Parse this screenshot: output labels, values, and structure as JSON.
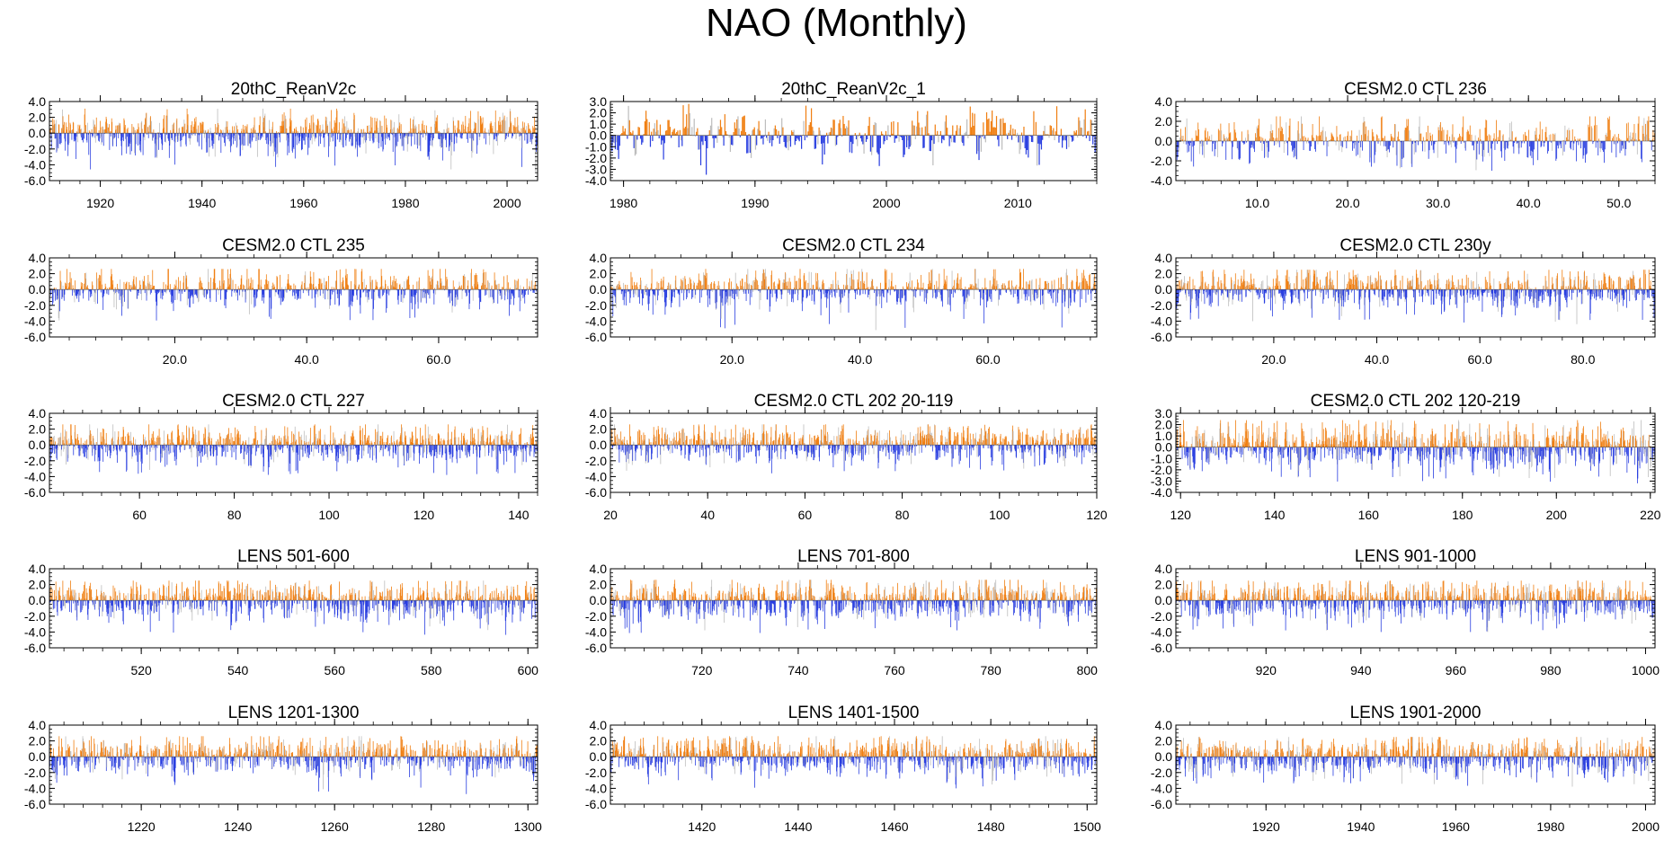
{
  "title": "NAO (Monthly)",
  "colors": {
    "positive": "#f07f12",
    "negative": "#2a3fe0",
    "faint": "#bdbdbd",
    "axis": "#000000"
  },
  "chart_data": [
    {
      "type": "bar",
      "title": "20thC_ReanV2c",
      "xlim": [
        1910,
        2006
      ],
      "ylim": [
        -6.0,
        4.0
      ],
      "yticks": [
        "4.0",
        "2.0",
        "0.0",
        "-2.0",
        "-4.0",
        "-6.0"
      ],
      "ytick_values": [
        4,
        2,
        0,
        -2,
        -4,
        -6
      ],
      "xticks": [
        "1920",
        "1940",
        "1960",
        "1980",
        "2000"
      ],
      "xtick_values": [
        1920,
        1940,
        1960,
        1980,
        2000
      ],
      "monthly_series": {
        "months": 1152,
        "amplitude": 1.2,
        "max": 3.1,
        "min": -5.0,
        "seed": 11
      }
    },
    {
      "type": "bar",
      "title": "20thC_ReanV2c_1",
      "xlim": [
        1979,
        2016
      ],
      "ylim": [
        -4.0,
        3.0
      ],
      "yticks": [
        "3.0",
        "2.0",
        "1.0",
        "0.0",
        "-1.0",
        "-2.0",
        "-3.0",
        "-4.0"
      ],
      "ytick_values": [
        3,
        2,
        1,
        0,
        -1,
        -2,
        -3,
        -4
      ],
      "xticks": [
        "1980",
        "1990",
        "2000",
        "2010"
      ],
      "xtick_values": [
        1980,
        1990,
        2000,
        2010
      ],
      "monthly_series": {
        "months": 444,
        "amplitude": 0.9,
        "max": 2.9,
        "min": -3.9,
        "seed": 12
      }
    },
    {
      "type": "bar",
      "title": "CESM2.0 CTL 236",
      "xlim": [
        1,
        54
      ],
      "ylim": [
        -4.0,
        4.0
      ],
      "yticks": [
        "4.0",
        "2.0",
        "0.0",
        "-2.0",
        "-4.0"
      ],
      "ytick_values": [
        4,
        2,
        0,
        -2,
        -4
      ],
      "xticks": [
        "10.0",
        "20.0",
        "30.0",
        "40.0",
        "50.0"
      ],
      "xtick_values": [
        10,
        20,
        30,
        40,
        50
      ],
      "monthly_series": {
        "months": 636,
        "amplitude": 1.0,
        "max": 2.5,
        "min": -3.0,
        "seed": 13
      }
    },
    {
      "type": "bar",
      "title": "CESM2.0 CTL 235",
      "xlim": [
        1,
        75
      ],
      "ylim": [
        -6.0,
        4.0
      ],
      "yticks": [
        "4.0",
        "2.0",
        "0.0",
        "-2.0",
        "-4.0",
        "-6.0"
      ],
      "ytick_values": [
        4,
        2,
        0,
        -2,
        -4,
        -6
      ],
      "xticks": [
        "20.0",
        "40.0",
        "60.0"
      ],
      "xtick_values": [
        20,
        40,
        60
      ],
      "monthly_series": {
        "months": 888,
        "amplitude": 1.1,
        "max": 2.6,
        "min": -4.0,
        "seed": 14
      }
    },
    {
      "type": "bar",
      "title": "CESM2.0 CTL 234",
      "xlim": [
        1,
        77
      ],
      "ylim": [
        -6.0,
        4.0
      ],
      "yticks": [
        "4.0",
        "2.0",
        "0.0",
        "-2.0",
        "-4.0",
        "-6.0"
      ],
      "ytick_values": [
        4,
        2,
        0,
        -2,
        -4,
        -6
      ],
      "xticks": [
        "20.0",
        "40.0",
        "60.0"
      ],
      "xtick_values": [
        20,
        40,
        60
      ],
      "monthly_series": {
        "months": 912,
        "amplitude": 1.1,
        "max": 2.6,
        "min": -5.2,
        "seed": 15
      }
    },
    {
      "type": "bar",
      "title": "CESM2.0 CTL 230y",
      "xlim": [
        1,
        94
      ],
      "ylim": [
        -6.0,
        4.0
      ],
      "yticks": [
        "4.0",
        "2.0",
        "0.0",
        "-2.0",
        "-4.0",
        "-6.0"
      ],
      "ytick_values": [
        4,
        2,
        0,
        -2,
        -4,
        -6
      ],
      "xticks": [
        "20.0",
        "40.0",
        "60.0",
        "80.0"
      ],
      "xtick_values": [
        20,
        40,
        60,
        80
      ],
      "monthly_series": {
        "months": 1116,
        "amplitude": 1.1,
        "max": 2.5,
        "min": -4.4,
        "seed": 16
      }
    },
    {
      "type": "bar",
      "title": "CESM2.0 CTL 227",
      "xlim": [
        41,
        144
      ],
      "ylim": [
        -6.0,
        4.0
      ],
      "yticks": [
        "4.0",
        "2.0",
        "0.0",
        "-2.0",
        "-4.0",
        "-6.0"
      ],
      "ytick_values": [
        4,
        2,
        0,
        -2,
        -4,
        -6
      ],
      "xticks": [
        "60",
        "80",
        "100",
        "120",
        "140"
      ],
      "xtick_values": [
        60,
        80,
        100,
        120,
        140
      ],
      "monthly_series": {
        "months": 1236,
        "amplitude": 1.1,
        "max": 2.6,
        "min": -3.8,
        "seed": 17
      }
    },
    {
      "type": "bar",
      "title": "CESM2.0 CTL 202 20-119",
      "xlim": [
        20,
        120
      ],
      "ylim": [
        -6.0,
        4.0
      ],
      "yticks": [
        "4.0",
        "2.0",
        "0.0",
        "-2.0",
        "-4.0",
        "-6.0"
      ],
      "ytick_values": [
        4,
        2,
        0,
        -2,
        -4,
        -6
      ],
      "xticks": [
        "20",
        "40",
        "60",
        "80",
        "100",
        "120"
      ],
      "xtick_values": [
        20,
        40,
        60,
        80,
        100,
        120
      ],
      "monthly_series": {
        "months": 1200,
        "amplitude": 1.1,
        "max": 2.6,
        "min": -3.6,
        "seed": 18
      }
    },
    {
      "type": "bar",
      "title": "CESM2.0 CTL 202 120-219",
      "xlim": [
        119,
        221
      ],
      "ylim": [
        -4.0,
        3.0
      ],
      "yticks": [
        "3.0",
        "2.0",
        "1.0",
        "0.0",
        "-1.0",
        "-2.0",
        "-3.0",
        "-4.0"
      ],
      "ytick_values": [
        3,
        2,
        1,
        0,
        -1,
        -2,
        -3,
        -4
      ],
      "xticks": [
        "120",
        "140",
        "160",
        "180",
        "200",
        "220"
      ],
      "xtick_values": [
        120,
        140,
        160,
        180,
        200,
        220
      ],
      "monthly_series": {
        "months": 1200,
        "amplitude": 0.9,
        "max": 2.4,
        "min": -3.2,
        "seed": 19
      }
    },
    {
      "type": "bar",
      "title": "LENS 501-600",
      "xlim": [
        501,
        602
      ],
      "ylim": [
        -6.0,
        4.0
      ],
      "yticks": [
        "4.0",
        "2.0",
        "0.0",
        "-2.0",
        "-4.0",
        "-6.0"
      ],
      "ytick_values": [
        4,
        2,
        0,
        -2,
        -4,
        -6
      ],
      "xticks": [
        "520",
        "540",
        "560",
        "580",
        "600"
      ],
      "xtick_values": [
        520,
        540,
        560,
        580,
        600
      ],
      "monthly_series": {
        "months": 1200,
        "amplitude": 1.1,
        "max": 2.5,
        "min": -4.4,
        "seed": 20
      }
    },
    {
      "type": "bar",
      "title": "LENS 701-800",
      "xlim": [
        701,
        802
      ],
      "ylim": [
        -6.0,
        4.0
      ],
      "yticks": [
        "4.0",
        "2.0",
        "0.0",
        "-2.0",
        "-4.0",
        "-6.0"
      ],
      "ytick_values": [
        4,
        2,
        0,
        -2,
        -4,
        -6
      ],
      "xticks": [
        "720",
        "740",
        "760",
        "780",
        "800"
      ],
      "xtick_values": [
        720,
        740,
        760,
        780,
        800
      ],
      "monthly_series": {
        "months": 1200,
        "amplitude": 1.1,
        "max": 2.6,
        "min": -4.2,
        "seed": 21
      }
    },
    {
      "type": "bar",
      "title": "LENS 901-1000",
      "xlim": [
        901,
        1002
      ],
      "ylim": [
        -6.0,
        4.0
      ],
      "yticks": [
        "4.0",
        "2.0",
        "0.0",
        "-2.0",
        "-4.0",
        "-6.0"
      ],
      "ytick_values": [
        4,
        2,
        0,
        -2,
        -4,
        -6
      ],
      "xticks": [
        "920",
        "940",
        "960",
        "980",
        "1000"
      ],
      "xtick_values": [
        920,
        940,
        960,
        980,
        1000
      ],
      "monthly_series": {
        "months": 1200,
        "amplitude": 1.1,
        "max": 2.5,
        "min": -4.0,
        "seed": 22
      }
    },
    {
      "type": "bar",
      "title": "LENS 1201-1300",
      "xlim": [
        1201,
        1302
      ],
      "ylim": [
        -6.0,
        4.0
      ],
      "yticks": [
        "4.0",
        "2.0",
        "0.0",
        "-2.0",
        "-4.0",
        "-6.0"
      ],
      "ytick_values": [
        4,
        2,
        0,
        -2,
        -4,
        -6
      ],
      "xticks": [
        "1220",
        "1240",
        "1260",
        "1280",
        "1300"
      ],
      "xtick_values": [
        1220,
        1240,
        1260,
        1280,
        1300
      ],
      "monthly_series": {
        "months": 1200,
        "amplitude": 1.1,
        "max": 2.6,
        "min": -4.8,
        "seed": 23
      }
    },
    {
      "type": "bar",
      "title": "LENS 1401-1500",
      "xlim": [
        1401,
        1502
      ],
      "ylim": [
        -6.0,
        4.0
      ],
      "yticks": [
        "4.0",
        "2.0",
        "0.0",
        "-2.0",
        "-4.0",
        "-6.0"
      ],
      "ytick_values": [
        4,
        2,
        0,
        -2,
        -4,
        -6
      ],
      "xticks": [
        "1420",
        "1440",
        "1460",
        "1480",
        "1500"
      ],
      "xtick_values": [
        1420,
        1440,
        1460,
        1480,
        1500
      ],
      "monthly_series": {
        "months": 1200,
        "amplitude": 1.1,
        "max": 2.6,
        "min": -4.0,
        "seed": 24
      }
    },
    {
      "type": "bar",
      "title": "LENS 1901-2000",
      "xlim": [
        1901,
        2002
      ],
      "ylim": [
        -6.0,
        4.0
      ],
      "yticks": [
        "4.0",
        "2.0",
        "0.0",
        "-2.0",
        "-4.0",
        "-6.0"
      ],
      "ytick_values": [
        4,
        2,
        0,
        -2,
        -4,
        -6
      ],
      "xticks": [
        "1920",
        "1940",
        "1960",
        "1980",
        "2000"
      ],
      "xtick_values": [
        1920,
        1940,
        1960,
        1980,
        2000
      ],
      "monthly_series": {
        "months": 1200,
        "amplitude": 1.1,
        "max": 2.5,
        "min": -3.8,
        "seed": 25
      }
    }
  ]
}
